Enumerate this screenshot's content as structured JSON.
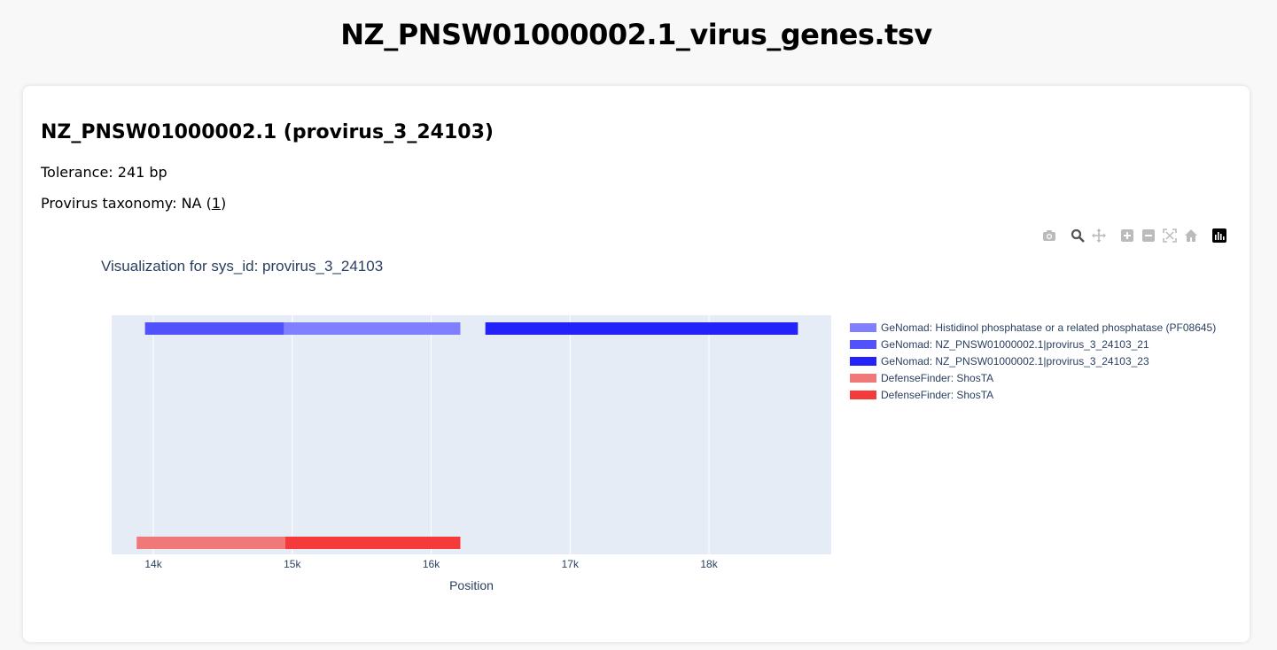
{
  "page": {
    "title": "NZ_PNSW01000002.1_virus_genes.tsv"
  },
  "card": {
    "title": "NZ_PNSW01000002.1 (provirus_3_24103)",
    "tolerance_label": "Tolerance: 241 bp",
    "taxonomy_prefix": "Provirus taxonomy: NA (",
    "taxonomy_link": "1",
    "taxonomy_suffix": ")"
  },
  "modebar": {
    "icons": [
      "camera-icon",
      "zoom-icon",
      "pan-icon",
      "zoom-in-icon",
      "zoom-out-icon",
      "autoscale-icon",
      "reset-axes-icon",
      "plotly-logo-icon"
    ]
  },
  "chart_data": {
    "type": "bar",
    "orientation": "horizontal",
    "title": "Visualization for sys_id: provirus_3_24103",
    "xlabel": "Position",
    "ylabel": "",
    "xlim": [
      13700,
      18880
    ],
    "x_ticks": [
      14000,
      15000,
      16000,
      17000,
      18000
    ],
    "x_tick_labels": [
      "14k",
      "15k",
      "16k",
      "17k",
      "18k"
    ],
    "grid": true,
    "legend_placement": "right",
    "series": [
      {
        "name": "GeNomad: Histidinol phosphatase or a related phosphatase (PF08645)",
        "color": "#7f7fff",
        "lane": "top",
        "start": 14940,
        "end": 16210
      },
      {
        "name": "GeNomad: NZ_PNSW01000002.1|provirus_3_24103_21",
        "color": "#5252fb",
        "lane": "top",
        "start": 13940,
        "end": 14940
      },
      {
        "name": "GeNomad: NZ_PNSW01000002.1|provirus_3_24103_23",
        "color": "#2222f9",
        "lane": "top",
        "start": 16390,
        "end": 18640
      },
      {
        "name": "DefenseFinder: ShosTA",
        "color": "#f07878",
        "lane": "bottom",
        "start": 13880,
        "end": 14950
      },
      {
        "name": "DefenseFinder: ShosTA",
        "color": "#f43a3a",
        "lane": "bottom",
        "start": 14950,
        "end": 16210
      }
    ]
  }
}
